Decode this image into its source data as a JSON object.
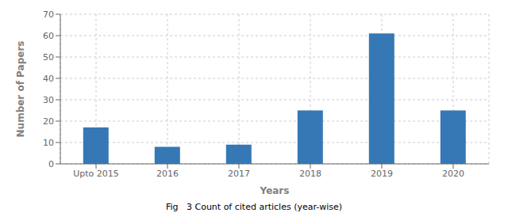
{
  "chart_data": {
    "type": "bar",
    "categories": [
      "Upto 2015",
      "2016",
      "2017",
      "2018",
      "2019",
      "2020"
    ],
    "values": [
      17,
      8,
      9,
      25,
      61,
      25
    ],
    "color": "#3578B5",
    "xlabel": "Years",
    "ylabel": "Number of Papers",
    "ylim": [
      0,
      70
    ],
    "yticks": [
      0,
      10,
      20,
      30,
      40,
      50,
      60,
      70
    ],
    "grid": true,
    "caption": "Fig   3 Count of cited articles (year-wise)"
  }
}
